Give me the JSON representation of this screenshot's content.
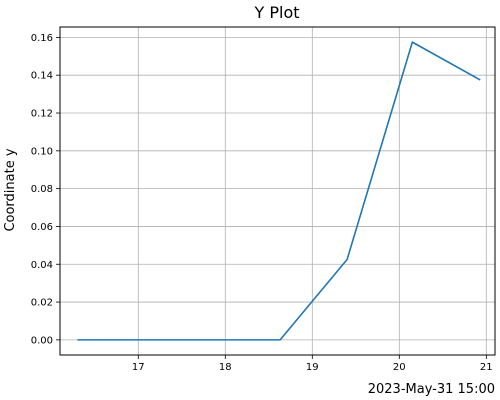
{
  "chart_data": {
    "type": "line",
    "title": "Y Plot",
    "xlabel": "",
    "ylabel": "Coordinate y",
    "x_offset_label": "2023-May-31 15:00",
    "x_ticks": [
      17,
      18,
      19,
      20,
      21
    ],
    "y_ticks": [
      0.0,
      0.02,
      0.04,
      0.06,
      0.08,
      0.1,
      0.12,
      0.14,
      0.16
    ],
    "y_tick_labels": [
      "0.00",
      "0.02",
      "0.04",
      "0.06",
      "0.08",
      "0.10",
      "0.12",
      "0.14",
      "0.16"
    ],
    "xlim": [
      16.1,
      21.1
    ],
    "ylim": [
      -0.008,
      0.1655
    ],
    "grid": true,
    "series": [
      {
        "color": "#1f77b4",
        "x": [
          16.3,
          17.1,
          17.9,
          18.63,
          19.4,
          20.15,
          20.93
        ],
        "y": [
          0.0,
          0.0,
          0.0,
          0.0,
          0.0425,
          0.1575,
          0.1375
        ]
      }
    ]
  }
}
